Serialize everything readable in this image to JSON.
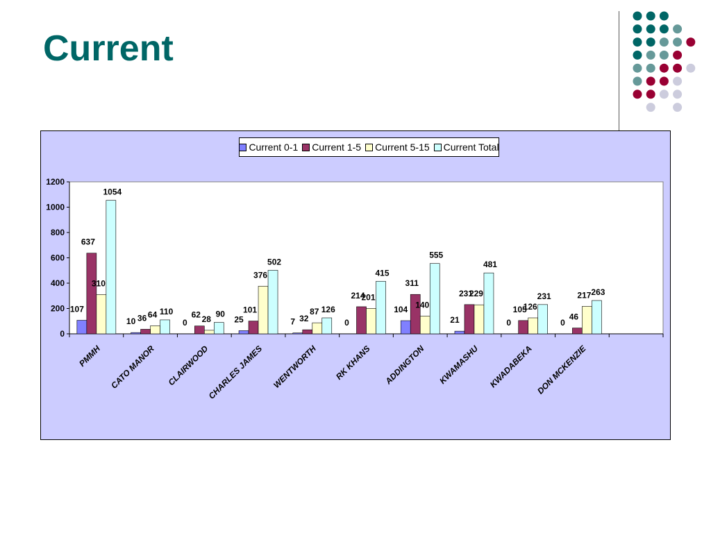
{
  "slide": {
    "title": "Current"
  },
  "decoration": {
    "dot_colors": {
      "teal": "#006666",
      "grey_teal": "#669999",
      "crimson": "#990033",
      "lavender": "#ccccdd"
    },
    "dot_grid": [
      [
        "teal",
        "teal",
        "teal",
        "",
        ""
      ],
      [
        "teal",
        "teal",
        "teal",
        "grey_teal",
        ""
      ],
      [
        "teal",
        "teal",
        "grey_teal",
        "grey_teal",
        "crimson"
      ],
      [
        "teal",
        "grey_teal",
        "grey_teal",
        "crimson",
        ""
      ],
      [
        "grey_teal",
        "grey_teal",
        "crimson",
        "crimson",
        "lavender"
      ],
      [
        "grey_teal",
        "crimson",
        "crimson",
        "lavender",
        ""
      ],
      [
        "crimson",
        "crimson",
        "lavender",
        "lavender",
        ""
      ],
      [
        "",
        "lavender",
        "",
        "lavender",
        ""
      ]
    ]
  },
  "chart_data": {
    "type": "bar",
    "categories": [
      "PMMH",
      "CATO MANOR",
      "CLAIRWOOD",
      "CHARLES JAMES",
      "WENTWORTH",
      "RK KHANS",
      "ADDINGTON",
      "KWAMASHU",
      "KWADABEKA",
      "DON MCKENZIE",
      ""
    ],
    "series": [
      {
        "name": "Current 0-1",
        "color": "#8080ff",
        "values": [
          107,
          10,
          0,
          25,
          7,
          0,
          104,
          21,
          0,
          0,
          null
        ]
      },
      {
        "name": "Current 1-5",
        "color": "#993366",
        "values": [
          637,
          36,
          62,
          101,
          32,
          214,
          311,
          231,
          105,
          46,
          null
        ]
      },
      {
        "name": "Current 5-15",
        "color": "#ffffcc",
        "values": [
          310,
          64,
          28,
          376,
          87,
          201,
          140,
          229,
          126,
          217,
          null
        ]
      },
      {
        "name": "Current Total",
        "color": "#ccffff",
        "values": [
          1054,
          110,
          90,
          502,
          126,
          415,
          555,
          481,
          231,
          263,
          null
        ]
      }
    ],
    "yticks": [
      "0",
      "200",
      "400",
      "600",
      "800",
      "1000",
      "1200"
    ],
    "ylim": [
      0,
      1200
    ],
    "legend_position": "top-center",
    "grid": false,
    "title": "",
    "xlabel": "",
    "ylabel": ""
  }
}
